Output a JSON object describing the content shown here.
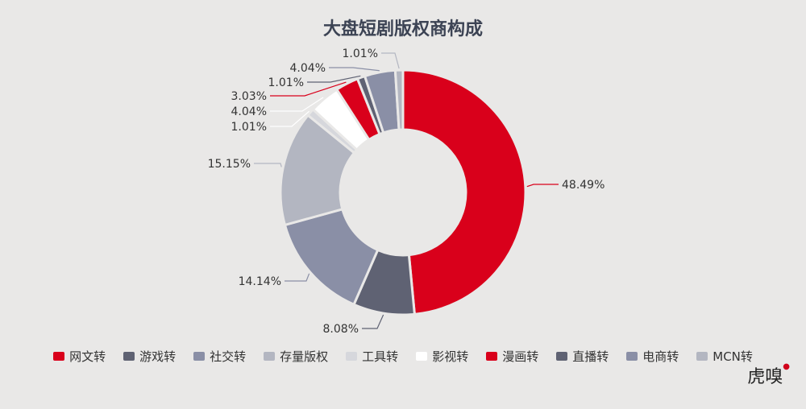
{
  "chart_data": {
    "type": "pie",
    "title": "大盘短剧版权商构成",
    "categories": [
      "网文转",
      "游戏转",
      "社交转",
      "存量版权",
      "工具转",
      "影视转",
      "漫画转",
      "直播转",
      "电商转",
      "MCN转"
    ],
    "values": [
      48.49,
      8.08,
      14.14,
      15.15,
      1.01,
      4.04,
      3.03,
      1.01,
      4.04,
      1.01
    ],
    "labels": [
      "48.49%",
      "8.08%",
      "14.14%",
      "15.15%",
      "1.01%",
      "4.04%",
      "3.03%",
      "1.01%",
      "4.04%",
      "1.01%"
    ],
    "colors": [
      "#d9001b",
      "#5f6273",
      "#8a8fa6",
      "#b3b6c1",
      "#d6d7dc",
      "#ffffff",
      "#d9001b",
      "#5f6273",
      "#8a8fa6",
      "#b3b6c1"
    ],
    "donut": true,
    "legend_position": "bottom"
  },
  "logo": {
    "text": "虎嗅"
  }
}
